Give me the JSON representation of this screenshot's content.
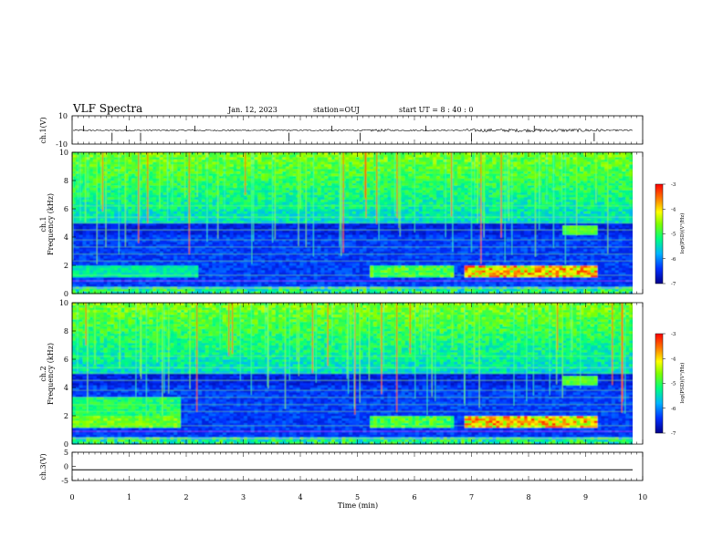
{
  "header": {
    "title": "VLF Spectra",
    "date": "Jan. 12, 2023",
    "station": "station=OUJ",
    "start": "start UT =  8 : 40 : 0"
  },
  "chart_data": [
    {
      "type": "line",
      "name_label": "ch.1(V)",
      "ylabel": "ch.1(V)",
      "ylim": [
        -10,
        10
      ],
      "yticks": [
        "10",
        "-10"
      ],
      "xlim": [
        0,
        10
      ],
      "description": "waveform, approx. flat near 0 with intermittent spikes"
    },
    {
      "type": "heatmap",
      "ylabel_top": "ch.1",
      "ylabel": "Frequency (kHz)",
      "ylim": [
        0,
        10
      ],
      "yticks": [
        "0",
        "2",
        "4",
        "6",
        "8",
        "10"
      ],
      "xlim": [
        0,
        10
      ],
      "colorbar": {
        "label": "log(PSD)(V²/Hz)",
        "range": [
          -7,
          -3
        ],
        "ticks": [
          "-3",
          "-4",
          "-5",
          "-6",
          "-7"
        ]
      },
      "features": {
        "noise_floor_top_khz": 4.8,
        "emission_band_khz": [
          1.2,
          2.0
        ],
        "emission_band_strong_min": [
          6.9,
          9.2
        ]
      }
    },
    {
      "type": "heatmap",
      "ylabel_top": "ch.2",
      "ylabel": "Frequency (kHz)",
      "ylim": [
        0,
        10
      ],
      "yticks": [
        "0",
        "2",
        "4",
        "6",
        "8",
        "10"
      ],
      "xlim": [
        0,
        10
      ],
      "colorbar": {
        "label": "log(PSD)(V²/Hz)",
        "range": [
          -7,
          -3
        ],
        "ticks": [
          "-3",
          "-4",
          "-5",
          "-6",
          "-7"
        ]
      },
      "features": {
        "emission_band_early_khz": [
          1.6,
          3.2
        ],
        "emission_band_early_min": [
          0,
          1.9
        ],
        "emission_band_khz": [
          1.2,
          2.0
        ],
        "emission_band_strong_min": [
          6.9,
          9.2
        ]
      }
    },
    {
      "type": "line",
      "ylabel": "ch.3(V)",
      "ylim": [
        -5,
        5
      ],
      "yticks": [
        "5",
        "0",
        "-5"
      ],
      "xlim": [
        0,
        10
      ],
      "values": [
        [
          0,
          -1.2
        ],
        [
          10,
          -1.2
        ]
      ],
      "xlabel": "Time (min)",
      "xticks": [
        "0",
        "1",
        "2",
        "3",
        "4",
        "5",
        "6",
        "7",
        "8",
        "9",
        "10"
      ]
    }
  ]
}
